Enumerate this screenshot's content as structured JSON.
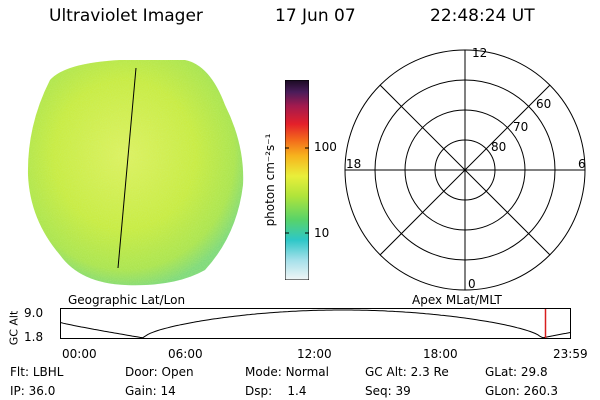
{
  "header": {
    "title": "Ultraviolet Imager",
    "date": "17 Jun 07",
    "time": "22:48:24 UT"
  },
  "colorbar": {
    "label": "photon cm⁻²s⁻¹",
    "ticks": [
      "100",
      "10"
    ]
  },
  "polar": {
    "ticks": [
      "12",
      "60",
      "70",
      "80",
      "18",
      "6",
      "0"
    ]
  },
  "image_labels": {
    "left": "Geographic Lat/Lon",
    "right": "Apex MLat/MLT"
  },
  "orbit": {
    "ylabel": "GC Alt",
    "yticks": [
      "9.0",
      "1.8"
    ],
    "xticks": [
      "00:00",
      "06:00",
      "12:00",
      "18:00",
      "23:59"
    ],
    "current_marker_hours": 22.8
  },
  "info": {
    "row1": [
      {
        "label": "Flt:",
        "value": "LBHL"
      },
      {
        "label": "Door:",
        "value": "Open"
      },
      {
        "label": "Mode:",
        "value": "Normal"
      },
      {
        "label": "GC Alt:",
        "value": "2.3 Re"
      },
      {
        "label": "GLat:",
        "value": "29.8"
      }
    ],
    "row2": [
      {
        "label": "IP:",
        "value": "36.0"
      },
      {
        "label": "Gain:",
        "value": "14"
      },
      {
        "label": "Dsp:",
        "value": "1.4"
      },
      {
        "label": "Seq:",
        "value": "39"
      },
      {
        "label": "GLon:",
        "value": "260.3"
      }
    ]
  },
  "colors": {
    "earth_main": "#c8ea3a",
    "earth_edge": "#7fdc72",
    "marker": "#d81e1e"
  }
}
